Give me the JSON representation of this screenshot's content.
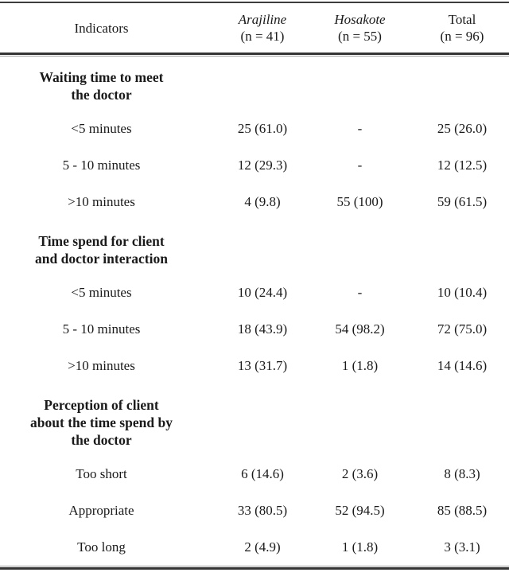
{
  "table": {
    "header": {
      "indicators": "Indicators",
      "columns": [
        {
          "name": "Arajiline",
          "n": "(n = 41)"
        },
        {
          "name": "Hosakote",
          "n": "(n = 55)"
        },
        {
          "name": "Total",
          "n": "(n = 96)"
        }
      ]
    },
    "sections": [
      {
        "title": "Waiting time to meet\nthe doctor",
        "rows": [
          {
            "label": "<5 minutes",
            "values": [
              "25 (61.0)",
              "-",
              "25 (26.0)"
            ]
          },
          {
            "label": "5 - 10 minutes",
            "values": [
              "12 (29.3)",
              "-",
              "12 (12.5)"
            ]
          },
          {
            "label": ">10 minutes",
            "values": [
              "4 (9.8)",
              "55 (100)",
              "59 (61.5)"
            ]
          }
        ]
      },
      {
        "title": "Time spend for client\nand doctor interaction",
        "rows": [
          {
            "label": "<5 minutes",
            "values": [
              "10 (24.4)",
              "-",
              "10 (10.4)"
            ]
          },
          {
            "label": "5 - 10 minutes",
            "values": [
              "18 (43.9)",
              "54 (98.2)",
              "72 (75.0)"
            ]
          },
          {
            "label": ">10 minutes",
            "values": [
              "13 (31.7)",
              "1 (1.8)",
              "14 (14.6)"
            ]
          }
        ]
      },
      {
        "title": "Perception of client\nabout the time spend by\nthe doctor",
        "rows": [
          {
            "label": "Too short",
            "values": [
              "6 (14.6)",
              "2 (3.6)",
              "8 (8.3)"
            ]
          },
          {
            "label": "Appropriate",
            "values": [
              "33 (80.5)",
              "52 (94.5)",
              "85 (88.5)"
            ]
          },
          {
            "label": "Too long",
            "values": [
              "2 (4.9)",
              "1 (1.8)",
              "3 (3.1)"
            ]
          }
        ]
      }
    ]
  }
}
